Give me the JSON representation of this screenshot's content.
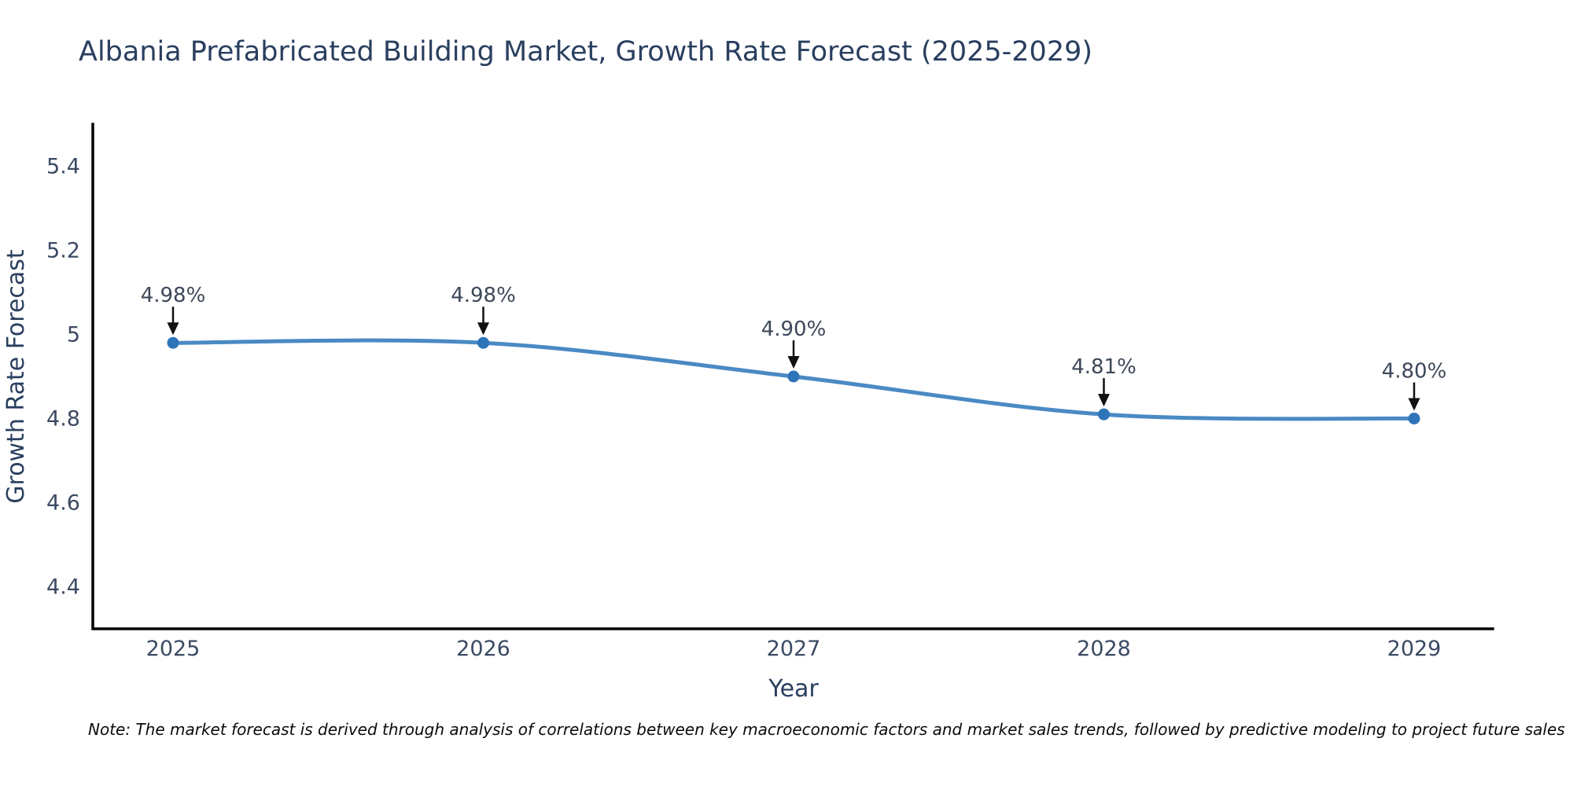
{
  "title": "Albania Prefabricated Building Market, Growth Rate Forecast (2025-2029)",
  "note": "Note: The market forecast is derived through analysis of correlations between key macroeconomic factors and market sales trends, followed by predictive modeling to project future sales",
  "chart_data": {
    "type": "line",
    "title": "Albania Prefabricated Building Market, Growth Rate Forecast (2025-2029)",
    "xlabel": "Year",
    "ylabel": "Growth Rate Forecast",
    "x": [
      2025,
      2026,
      2027,
      2028,
      2029
    ],
    "series": [
      {
        "name": "Growth Rate Forecast",
        "values": [
          4.98,
          4.98,
          4.9,
          4.81,
          4.8
        ]
      }
    ],
    "point_labels": [
      "4.98%",
      "4.98%",
      "4.90%",
      "4.81%",
      "4.80%"
    ],
    "ylim": [
      4.3,
      5.5
    ],
    "yticks": [
      5.4,
      5.2,
      5.0,
      4.8,
      4.6,
      4.4
    ],
    "ytick_labels": [
      "5.4",
      "5.2",
      "5",
      "4.8",
      "4.6",
      "4.4"
    ],
    "xtick_labels": [
      "2025",
      "2026",
      "2027",
      "2028",
      "2029"
    ],
    "grid": false,
    "legend": false,
    "curve": "spline",
    "colors": {
      "line": "#4a8ac4",
      "marker": "#2d74b9",
      "axis": "#000000",
      "title_text": "#2a3f5f",
      "tick_text": "#3b4a63",
      "annotation_text": "#3d4859",
      "arrow": "#111111",
      "background": "#ffffff"
    }
  }
}
